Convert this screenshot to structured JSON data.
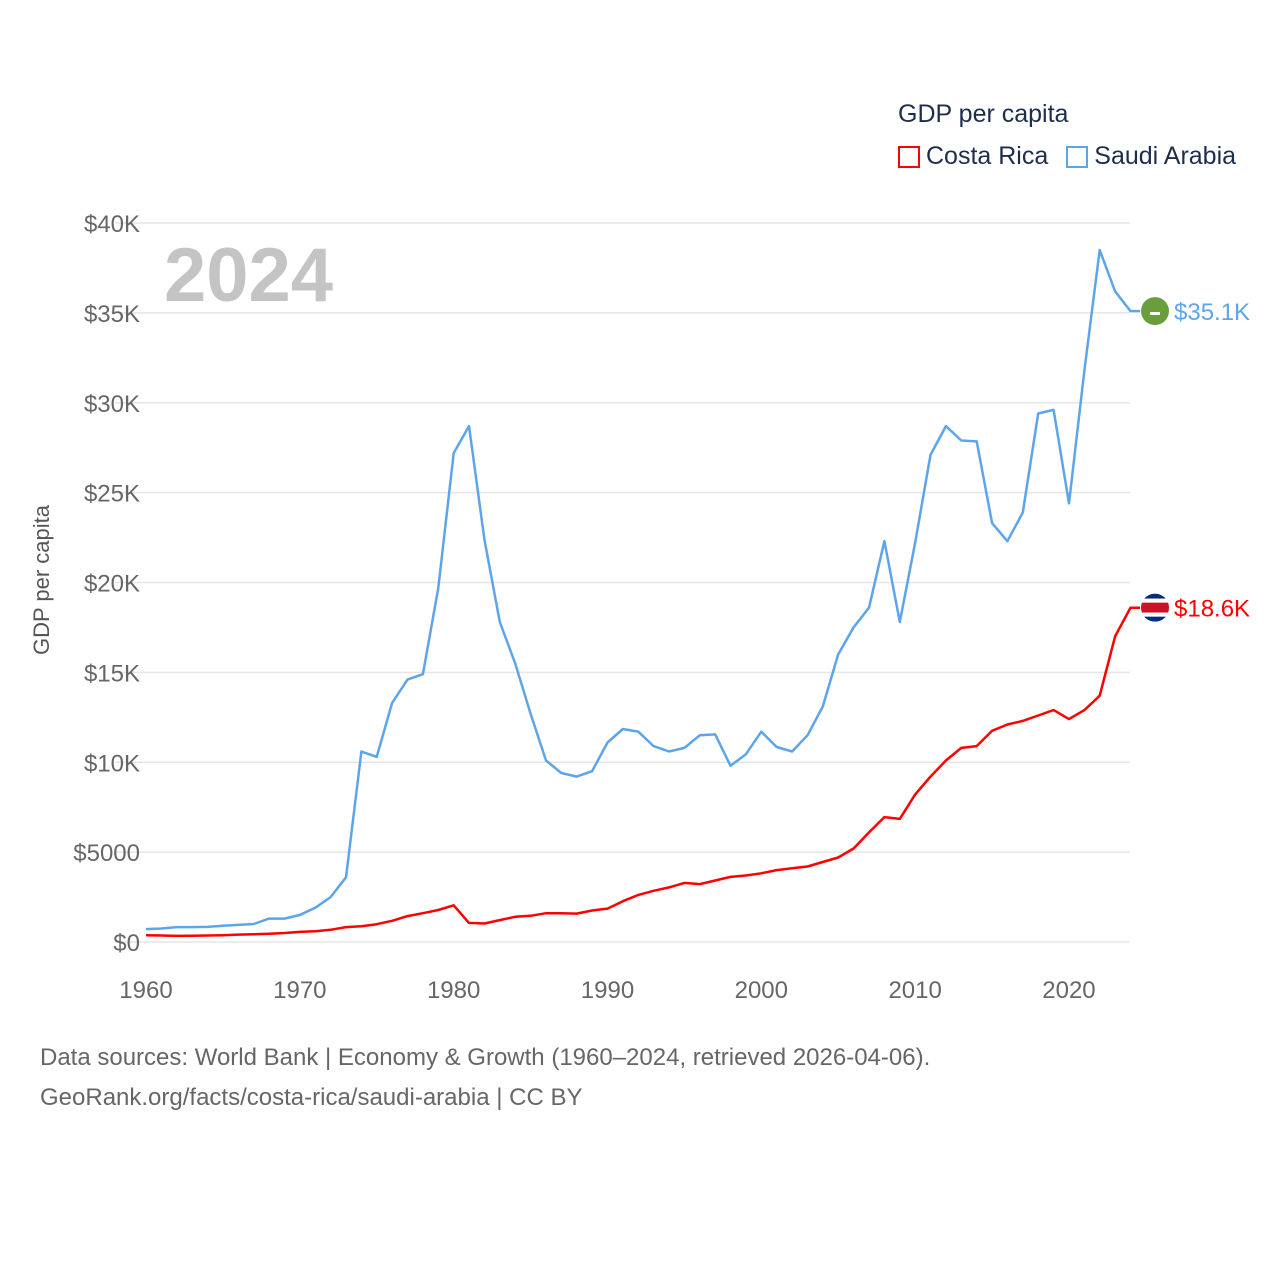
{
  "legend": {
    "title": "GDP per capita",
    "items": [
      {
        "label": "Costa Rica",
        "color": "#ff0000"
      },
      {
        "label": "Saudi Arabia",
        "color": "#5da5e8"
      }
    ]
  },
  "year_label": "2024",
  "footer": {
    "line1": "Data sources: World Bank | Economy & Growth (1960–2024, retrieved 2026-04-06).",
    "line2": "GeoRank.org/facts/costa-rica/saudi-arabia | CC BY"
  },
  "chart_data": {
    "type": "line",
    "title": "GDP per capita",
    "xlabel": "",
    "ylabel": "GDP per capita",
    "xlim": [
      1960,
      2024
    ],
    "ylim": [
      0,
      40000
    ],
    "grid": true,
    "legend_position": "top-right",
    "x_ticks": [
      1960,
      1970,
      1980,
      1990,
      2000,
      2010,
      2020
    ],
    "x_tick_labels": [
      "1960",
      "1970",
      "1980",
      "1990",
      "2000",
      "2010",
      "2020"
    ],
    "y_ticks": [
      0,
      5000,
      10000,
      15000,
      20000,
      25000,
      30000,
      35000,
      40000
    ],
    "y_tick_labels": [
      "$0",
      "$5000",
      "$10K",
      "$15K",
      "$20K",
      "$25K",
      "$30K",
      "$35K",
      "$40K"
    ],
    "x": [
      1960,
      1961,
      1962,
      1963,
      1964,
      1965,
      1966,
      1967,
      1968,
      1969,
      1970,
      1971,
      1972,
      1973,
      1974,
      1975,
      1976,
      1977,
      1978,
      1979,
      1980,
      1981,
      1982,
      1983,
      1984,
      1985,
      1986,
      1987,
      1988,
      1989,
      1990,
      1991,
      1992,
      1993,
      1994,
      1995,
      1996,
      1997,
      1998,
      1999,
      2000,
      2001,
      2002,
      2003,
      2004,
      2005,
      2006,
      2007,
      2008,
      2009,
      2010,
      2011,
      2012,
      2013,
      2014,
      2015,
      2016,
      2017,
      2018,
      2019,
      2020,
      2021,
      2022,
      2023,
      2024
    ],
    "series": [
      {
        "name": "Costa Rica",
        "color": "#ff0000",
        "end_label": "$18.6K",
        "values": [
          380,
          360,
          340,
          350,
          360,
          380,
          410,
          430,
          460,
          500,
          560,
          600,
          680,
          830,
          880,
          990,
          1180,
          1440,
          1600,
          1780,
          2040,
          1060,
          1030,
          1220,
          1400,
          1460,
          1600,
          1600,
          1580,
          1750,
          1860,
          2270,
          2620,
          2850,
          3040,
          3290,
          3220,
          3420,
          3620,
          3700,
          3820,
          4000,
          4100,
          4200,
          4450,
          4700,
          5200,
          6100,
          6950,
          6850,
          8200,
          9200,
          10100,
          10800,
          10900,
          11750,
          12100,
          12300,
          12600,
          12900,
          12400,
          12900,
          13700,
          17000,
          18600
        ]
      },
      {
        "name": "Saudi Arabia",
        "color": "#5da5e8",
        "end_label": "$35.1K",
        "values": [
          720,
          750,
          830,
          830,
          840,
          900,
          950,
          1000,
          1300,
          1300,
          1500,
          1900,
          2500,
          3600,
          10600,
          10300,
          13300,
          14600,
          14900,
          19700,
          27200,
          28700,
          22400,
          17800,
          15500,
          12700,
          10100,
          9400,
          9200,
          9500,
          11100,
          11850,
          11700,
          10900,
          10600,
          10800,
          11500,
          11550,
          9800,
          10450,
          11700,
          10850,
          10600,
          11500,
          13100,
          16000,
          17500,
          18600,
          22300,
          17800,
          22200,
          27100,
          28700,
          27900,
          27850,
          23300,
          22300,
          23900,
          29400,
          29600,
          24400,
          31800,
          38500,
          36200,
          35100
        ]
      }
    ]
  }
}
